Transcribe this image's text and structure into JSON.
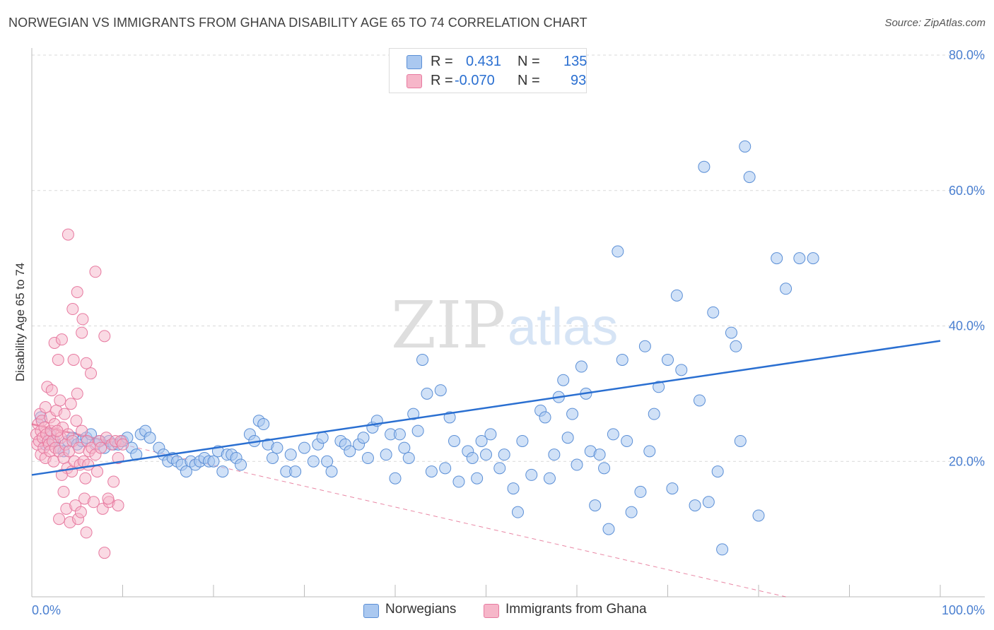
{
  "header": {
    "title": "NORWEGIAN VS IMMIGRANTS FROM GHANA DISABILITY AGE 65 TO 74 CORRELATION CHART",
    "source": "Source: ZipAtlas.com"
  },
  "watermark": {
    "part1": "ZIP",
    "part2": "atlas"
  },
  "legend": {
    "rows": [
      {
        "r_label": "R =",
        "r_value": "0.431",
        "n_label": "N =",
        "n_value": "135"
      },
      {
        "r_label": "R =",
        "r_value": "-0.070",
        "n_label": "N =",
        "n_value": "93"
      }
    ]
  },
  "bottom_legend": {
    "items": [
      "Norwegians",
      "Immigrants from Ghana"
    ]
  },
  "colors": {
    "blue_fill": "#aac8f0",
    "blue_stroke": "#5b8fd6",
    "blue_line": "#2a6fd1",
    "pink_fill": "#f6b6c9",
    "pink_stroke": "#e77aa0",
    "pink_line": "#e0557f",
    "axis_label": "#4a7fd0",
    "grid": "#d9d9d9"
  },
  "chart_data": {
    "type": "scatter",
    "title": "NORWEGIAN VS IMMIGRANTS FROM GHANA DISABILITY AGE 65 TO 74 CORRELATION CHART",
    "xlabel": "",
    "ylabel": "Disability Age 65 to 74",
    "xlim": [
      0,
      100
    ],
    "ylim": [
      0,
      80
    ],
    "x_tick_labels": [
      "0.0%",
      "100.0%"
    ],
    "y_ticks": [
      20,
      40,
      60,
      80
    ],
    "y_tick_labels": [
      "20.0%",
      "40.0%",
      "60.0%",
      "80.0%"
    ],
    "grid": true,
    "legend_position": "top-center",
    "series": [
      {
        "name": "Norwegians",
        "r": 0.431,
        "n": 135,
        "trend": {
          "x": [
            0,
            100
          ],
          "y": [
            18.0,
            37.8
          ]
        },
        "points": [
          [
            1.0,
            26.5
          ],
          [
            1.5,
            22.5
          ],
          [
            2.0,
            24.0
          ],
          [
            2.5,
            23.0
          ],
          [
            3.0,
            22.0
          ],
          [
            3.5,
            21.5
          ],
          [
            4.0,
            23.0
          ],
          [
            4.5,
            23.5
          ],
          [
            5.0,
            22.5
          ],
          [
            5.5,
            23.0
          ],
          [
            6.0,
            23.5
          ],
          [
            6.5,
            24.0
          ],
          [
            7.0,
            22.5
          ],
          [
            7.5,
            23.0
          ],
          [
            8.0,
            22.0
          ],
          [
            8.5,
            23.0
          ],
          [
            9.0,
            22.5
          ],
          [
            9.5,
            22.5
          ],
          [
            10.0,
            23.0
          ],
          [
            10.5,
            23.5
          ],
          [
            11.0,
            22.0
          ],
          [
            11.5,
            21.0
          ],
          [
            12.0,
            24.0
          ],
          [
            12.5,
            24.5
          ],
          [
            13.0,
            23.5
          ],
          [
            14.0,
            22.0
          ],
          [
            14.5,
            21.0
          ],
          [
            15.0,
            20.0
          ],
          [
            15.5,
            20.5
          ],
          [
            16.0,
            20.0
          ],
          [
            16.5,
            19.5
          ],
          [
            17.0,
            18.5
          ],
          [
            17.5,
            20.0
          ],
          [
            18.0,
            19.5
          ],
          [
            18.5,
            20.0
          ],
          [
            19.0,
            20.5
          ],
          [
            19.5,
            20.0
          ],
          [
            20.0,
            20.0
          ],
          [
            20.5,
            21.5
          ],
          [
            21.0,
            18.5
          ],
          [
            21.5,
            21.0
          ],
          [
            22.0,
            21.0
          ],
          [
            22.5,
            20.5
          ],
          [
            23.0,
            19.5
          ],
          [
            24.0,
            24.0
          ],
          [
            24.5,
            23.0
          ],
          [
            25.0,
            26.0
          ],
          [
            25.5,
            25.5
          ],
          [
            26.0,
            22.5
          ],
          [
            26.5,
            20.5
          ],
          [
            27.0,
            22.0
          ],
          [
            28.0,
            18.5
          ],
          [
            28.5,
            21.0
          ],
          [
            29.0,
            18.5
          ],
          [
            30.0,
            22.0
          ],
          [
            31.0,
            20.0
          ],
          [
            31.5,
            22.5
          ],
          [
            32.0,
            23.5
          ],
          [
            32.5,
            20.0
          ],
          [
            33.0,
            18.5
          ],
          [
            34.0,
            23.0
          ],
          [
            34.5,
            22.5
          ],
          [
            35.0,
            21.5
          ],
          [
            36.0,
            22.5
          ],
          [
            36.5,
            23.5
          ],
          [
            37.0,
            20.5
          ],
          [
            37.5,
            25.0
          ],
          [
            38.0,
            26.0
          ],
          [
            39.0,
            21.0
          ],
          [
            39.5,
            24.0
          ],
          [
            40.0,
            17.5
          ],
          [
            40.5,
            24.0
          ],
          [
            41.0,
            22.0
          ],
          [
            41.5,
            20.5
          ],
          [
            42.0,
            27.0
          ],
          [
            42.5,
            24.5
          ],
          [
            43.0,
            35.0
          ],
          [
            43.5,
            30.0
          ],
          [
            44.0,
            18.5
          ],
          [
            45.0,
            30.5
          ],
          [
            45.5,
            19.0
          ],
          [
            46.0,
            26.5
          ],
          [
            46.5,
            23.0
          ],
          [
            47.0,
            17.0
          ],
          [
            48.0,
            21.5
          ],
          [
            48.5,
            20.5
          ],
          [
            49.0,
            17.5
          ],
          [
            49.5,
            23.0
          ],
          [
            50.0,
            21.0
          ],
          [
            50.5,
            24.0
          ],
          [
            51.5,
            19.0
          ],
          [
            52.0,
            21.0
          ],
          [
            53.0,
            16.0
          ],
          [
            53.5,
            12.5
          ],
          [
            54.0,
            23.0
          ],
          [
            55.0,
            18.0
          ],
          [
            56.0,
            27.5
          ],
          [
            56.5,
            26.5
          ],
          [
            57.0,
            17.5
          ],
          [
            57.5,
            21.0
          ],
          [
            58.0,
            29.5
          ],
          [
            58.5,
            32.0
          ],
          [
            59.0,
            23.5
          ],
          [
            59.5,
            27.0
          ],
          [
            60.0,
            19.5
          ],
          [
            60.5,
            34.0
          ],
          [
            61.0,
            30.0
          ],
          [
            61.5,
            21.5
          ],
          [
            62.0,
            13.5
          ],
          [
            62.5,
            21.0
          ],
          [
            63.0,
            19.0
          ],
          [
            63.5,
            10.0
          ],
          [
            64.0,
            24.0
          ],
          [
            64.5,
            51.0
          ],
          [
            65.0,
            35.0
          ],
          [
            65.5,
            23.0
          ],
          [
            66.0,
            12.5
          ],
          [
            67.0,
            15.5
          ],
          [
            67.5,
            37.0
          ],
          [
            68.0,
            21.5
          ],
          [
            68.5,
            27.0
          ],
          [
            69.0,
            31.0
          ],
          [
            70.0,
            35.0
          ],
          [
            70.5,
            16.0
          ],
          [
            71.0,
            44.5
          ],
          [
            71.5,
            33.5
          ],
          [
            73.0,
            13.5
          ],
          [
            73.5,
            29.0
          ],
          [
            74.0,
            63.5
          ],
          [
            74.5,
            14.0
          ],
          [
            75.0,
            42.0
          ],
          [
            75.5,
            18.5
          ],
          [
            76.0,
            7.0
          ],
          [
            77.0,
            39.0
          ],
          [
            77.5,
            37.0
          ],
          [
            78.0,
            23.0
          ],
          [
            78.5,
            66.5
          ],
          [
            79.0,
            62.0
          ],
          [
            80.0,
            12.0
          ],
          [
            82.0,
            50.0
          ],
          [
            83.0,
            45.5
          ],
          [
            84.5,
            50.0
          ],
          [
            86.0,
            50.0
          ]
        ]
      },
      {
        "name": "Immigrants from Ghana",
        "r": -0.07,
        "n": 93,
        "trend": {
          "x": [
            0,
            10
          ],
          "y": [
            25.5,
            22.5
          ]
        },
        "trend_extended": {
          "x": [
            10,
            83
          ],
          "y": [
            22.5,
            0
          ]
        },
        "points": [
          [
            0.5,
            24.0
          ],
          [
            0.6,
            22.5
          ],
          [
            0.7,
            25.5
          ],
          [
            0.8,
            23.0
          ],
          [
            0.9,
            27.0
          ],
          [
            1.0,
            24.5
          ],
          [
            1.0,
            21.0
          ],
          [
            1.1,
            26.0
          ],
          [
            1.2,
            23.5
          ],
          [
            1.3,
            22.0
          ],
          [
            1.4,
            25.0
          ],
          [
            1.5,
            28.0
          ],
          [
            1.5,
            20.5
          ],
          [
            1.6,
            24.0
          ],
          [
            1.7,
            31.0
          ],
          [
            1.8,
            23.0
          ],
          [
            1.9,
            22.5
          ],
          [
            2.0,
            26.5
          ],
          [
            2.0,
            21.5
          ],
          [
            2.1,
            24.5
          ],
          [
            2.2,
            30.5
          ],
          [
            2.3,
            23.0
          ],
          [
            2.4,
            20.0
          ],
          [
            2.5,
            25.5
          ],
          [
            2.5,
            37.5
          ],
          [
            2.6,
            22.0
          ],
          [
            2.7,
            27.5
          ],
          [
            2.8,
            24.0
          ],
          [
            2.9,
            35.0
          ],
          [
            3.0,
            21.5
          ],
          [
            3.0,
            11.5
          ],
          [
            3.1,
            29.0
          ],
          [
            3.2,
            23.5
          ],
          [
            3.3,
            38.0
          ],
          [
            3.4,
            25.0
          ],
          [
            3.5,
            15.5
          ],
          [
            3.5,
            20.5
          ],
          [
            3.6,
            27.0
          ],
          [
            3.7,
            22.5
          ],
          [
            3.8,
            13.0
          ],
          [
            3.9,
            19.0
          ],
          [
            4.0,
            53.5
          ],
          [
            4.0,
            24.0
          ],
          [
            4.1,
            21.5
          ],
          [
            4.2,
            11.0
          ],
          [
            4.3,
            28.5
          ],
          [
            4.4,
            18.5
          ],
          [
            4.5,
            42.5
          ],
          [
            4.5,
            23.0
          ],
          [
            4.6,
            35.0
          ],
          [
            4.7,
            20.0
          ],
          [
            4.8,
            13.5
          ],
          [
            4.9,
            26.0
          ],
          [
            5.0,
            45.0
          ],
          [
            5.0,
            30.0
          ],
          [
            5.1,
            11.5
          ],
          [
            5.2,
            22.0
          ],
          [
            5.3,
            19.5
          ],
          [
            5.4,
            12.5
          ],
          [
            5.5,
            39.0
          ],
          [
            5.5,
            24.5
          ],
          [
            5.6,
            41.0
          ],
          [
            5.7,
            20.0
          ],
          [
            5.8,
            14.5
          ],
          [
            5.9,
            17.5
          ],
          [
            6.0,
            34.5
          ],
          [
            6.0,
            9.5
          ],
          [
            6.1,
            23.0
          ],
          [
            6.2,
            19.5
          ],
          [
            6.3,
            21.5
          ],
          [
            6.5,
            33.0
          ],
          [
            6.6,
            22.0
          ],
          [
            6.8,
            14.0
          ],
          [
            7.0,
            48.0
          ],
          [
            7.0,
            21.0
          ],
          [
            7.2,
            18.5
          ],
          [
            7.4,
            23.0
          ],
          [
            7.6,
            22.0
          ],
          [
            7.8,
            13.0
          ],
          [
            8.0,
            6.5
          ],
          [
            8.2,
            23.5
          ],
          [
            8.5,
            14.0
          ],
          [
            8.8,
            22.5
          ],
          [
            9.0,
            17.0
          ],
          [
            9.2,
            23.0
          ],
          [
            9.5,
            20.5
          ],
          [
            9.8,
            23.0
          ],
          [
            10.0,
            22.5
          ],
          [
            8.0,
            38.5
          ],
          [
            8.4,
            14.5
          ],
          [
            3.3,
            18.0
          ],
          [
            2.8,
            24.5
          ],
          [
            9.5,
            13.5
          ]
        ]
      }
    ]
  }
}
